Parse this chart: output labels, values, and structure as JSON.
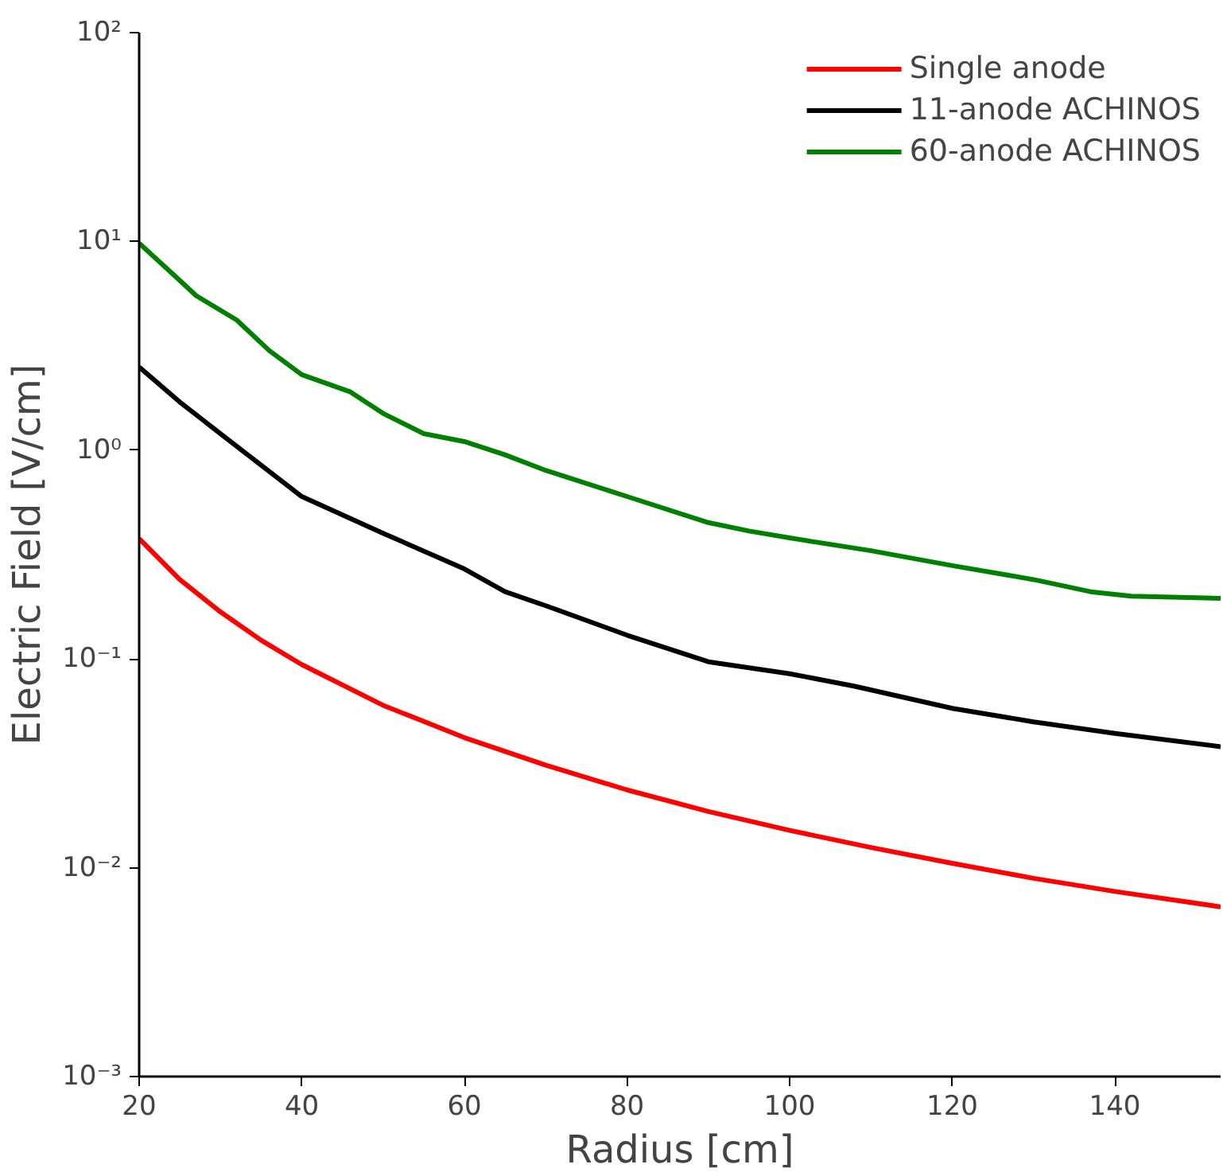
{
  "chart_data": {
    "type": "line",
    "xlabel": "Radius [cm]",
    "ylabel": "Electric Field [V/cm]",
    "log": "y",
    "grid": false,
    "legend": "top right",
    "xlim": [
      20,
      153
    ],
    "xticks": [
      20,
      40,
      60,
      80,
      100,
      120,
      140
    ],
    "ylim": [
      0.001,
      100
    ],
    "yticks": [
      {
        "value": 0.001,
        "label": "10⁻³"
      },
      {
        "value": 0.01,
        "label": "10⁻²"
      },
      {
        "value": 0.1,
        "label": "10⁻¹"
      },
      {
        "value": 1,
        "label": "10⁰"
      },
      {
        "value": 10,
        "label": "10¹"
      },
      {
        "value": 100,
        "label": "10²"
      }
    ],
    "series": [
      {
        "name": "Single anode",
        "color": "#ff0000",
        "x": [
          20,
          25,
          30,
          35,
          40,
          50,
          60,
          70,
          80,
          90,
          100,
          110,
          120,
          130,
          140,
          153
        ],
        "values": [
          0.377,
          0.24,
          0.168,
          0.123,
          0.094,
          0.06,
          0.042,
          0.031,
          0.0236,
          0.0186,
          0.0151,
          0.0125,
          0.0105,
          0.0089,
          0.0077,
          0.0065
        ]
      },
      {
        "name": "11-anode ACHINOS",
        "color": "#000000",
        "x": [
          20,
          25,
          30,
          40,
          50,
          60,
          65,
          70,
          80,
          90,
          100,
          108,
          120,
          130,
          140,
          153
        ],
        "values": [
          2.5,
          1.7,
          1.2,
          0.6,
          0.4,
          0.27,
          0.21,
          0.18,
          0.13,
          0.097,
          0.085,
          0.074,
          0.058,
          0.05,
          0.044,
          0.038
        ]
      },
      {
        "name": "60-anode ACHINOS",
        "color": "#008000",
        "x": [
          20,
          25,
          27,
          32,
          36,
          40,
          46,
          50,
          55,
          60,
          65,
          70,
          80,
          90,
          95,
          100,
          110,
          120,
          130,
          137,
          142,
          153
        ],
        "values": [
          9.8,
          6.5,
          5.5,
          4.2,
          3.0,
          2.3,
          1.9,
          1.5,
          1.2,
          1.1,
          0.95,
          0.8,
          0.6,
          0.45,
          0.41,
          0.38,
          0.33,
          0.28,
          0.24,
          0.21,
          0.2,
          0.195
        ]
      }
    ]
  }
}
